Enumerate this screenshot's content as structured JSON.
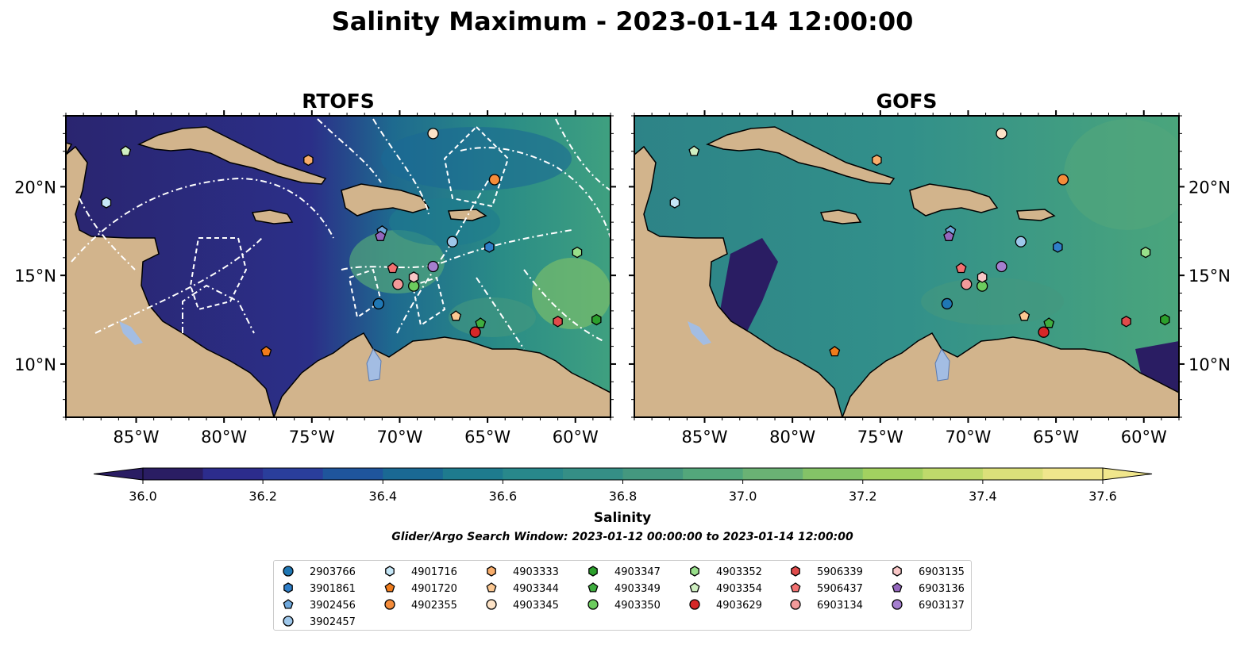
{
  "title": "Salinity Maximum - 2023-01-14 12:00:00",
  "colors": {
    "land": "#d2b48c",
    "lake": "#a3bde3",
    "river": "#8fb4e0",
    "front_lines": "#ffffff",
    "coast": "#000000"
  },
  "colorbar": {
    "label": "Salinity",
    "ticks": [
      "36.0",
      "36.2",
      "36.4",
      "36.6",
      "36.8",
      "37.0",
      "37.2",
      "37.4",
      "37.6"
    ],
    "vmin": 36.0,
    "vmax": 37.6,
    "colors": [
      "#2a1d63",
      "#2c2c8c",
      "#2a3e9b",
      "#1f559c",
      "#1a6994",
      "#1e7b8e",
      "#28888b",
      "#358f86",
      "#44987f",
      "#53a77b",
      "#6ab274",
      "#84c367",
      "#a2d160",
      "#bfda6b",
      "#dbe07a",
      "#f0e68c"
    ],
    "extend": "both"
  },
  "search_window": "Glider/Argo Search Window: 2023-01-12 00:00:00 to 2023-01-14 12:00:00",
  "chart_data": [
    {
      "type": "map",
      "title": "RTOFS",
      "xlim": [
        -89,
        -58
      ],
      "ylim": [
        7,
        24
      ],
      "xticks": [
        -85,
        -80,
        -75,
        -70,
        -65,
        -60
      ],
      "xtick_labels": [
        "85°W",
        "80°W",
        "75°W",
        "70°W",
        "65°W",
        "60°W"
      ],
      "yticks": [
        10,
        15,
        20
      ],
      "ytick_labels": [
        "10°N",
        "15°N",
        "20°N"
      ],
      "grid": false
    },
    {
      "type": "map",
      "title": "GOFS",
      "xlim": [
        -89,
        -58
      ],
      "ylim": [
        7,
        24
      ],
      "xticks": [
        -85,
        -80,
        -75,
        -70,
        -65,
        -60
      ],
      "xtick_labels": [
        "85°W",
        "80°W",
        "75°W",
        "70°W",
        "65°W",
        "60°W"
      ],
      "yticks": [
        10,
        15,
        20
      ],
      "ytick_labels": [
        "10°N",
        "15°N",
        "20°N"
      ],
      "grid": false
    }
  ],
  "floats": [
    {
      "id": "2903766",
      "marker": "circle",
      "color": "#1f77b4",
      "lon": -71.2,
      "lat": 13.4
    },
    {
      "id": "3901861",
      "marker": "hexagon",
      "color": "#2f7fc9",
      "lon": -64.9,
      "lat": 16.6
    },
    {
      "id": "3902456",
      "marker": "pentagon",
      "color": "#6fa8dc",
      "lon": -71.0,
      "lat": 17.5
    },
    {
      "id": "3902457",
      "marker": "circle",
      "color": "#9ec7ea",
      "lon": -67.0,
      "lat": 16.9
    },
    {
      "id": "4901716",
      "marker": "hexagon",
      "color": "#c6e7f7",
      "lon": -86.7,
      "lat": 19.1
    },
    {
      "id": "4901720",
      "marker": "pentagon",
      "color": "#f07c1c",
      "lon": -77.6,
      "lat": 10.7
    },
    {
      "id": "4902355",
      "marker": "circle",
      "color": "#f58c3a",
      "lon": -64.6,
      "lat": 20.4
    },
    {
      "id": "4903333",
      "marker": "hexagon",
      "color": "#f8ad6b",
      "lon": -75.2,
      "lat": 21.5
    },
    {
      "id": "4903344",
      "marker": "pentagon",
      "color": "#fcc892",
      "lon": -66.8,
      "lat": 12.7
    },
    {
      "id": "4903345",
      "marker": "circle",
      "color": "#fde3c7",
      "lon": -68.1,
      "lat": 23.0
    },
    {
      "id": "4903347",
      "marker": "hexagon",
      "color": "#2ca02c",
      "lon": -58.8,
      "lat": 12.5
    },
    {
      "id": "4903349",
      "marker": "pentagon",
      "color": "#3fae3f",
      "lon": -65.4,
      "lat": 12.3
    },
    {
      "id": "4903350",
      "marker": "circle",
      "color": "#6ccc5e",
      "lon": -69.2,
      "lat": 14.4
    },
    {
      "id": "4903352",
      "marker": "hexagon",
      "color": "#98df8a",
      "lon": -59.9,
      "lat": 16.3
    },
    {
      "id": "4903354",
      "marker": "pentagon",
      "color": "#cfefc1",
      "lon": -85.6,
      "lat": 22.0
    },
    {
      "id": "4903629",
      "marker": "circle",
      "color": "#d62728",
      "lon": -65.7,
      "lat": 11.8
    },
    {
      "id": "5906339",
      "marker": "hexagon",
      "color": "#e04b4b",
      "lon": -61.0,
      "lat": 12.4
    },
    {
      "id": "5906437",
      "marker": "pentagon",
      "color": "#f27171",
      "lon": -70.4,
      "lat": 15.4
    },
    {
      "id": "6903134",
      "marker": "circle",
      "color": "#f29a9a",
      "lon": -70.1,
      "lat": 14.5
    },
    {
      "id": "6903135",
      "marker": "hexagon",
      "color": "#f9c7c7",
      "lon": -69.2,
      "lat": 14.9
    },
    {
      "id": "6903136",
      "marker": "pentagon",
      "color": "#9467bd",
      "lon": -71.1,
      "lat": 17.2
    },
    {
      "id": "6903137",
      "marker": "circle",
      "color": "#a57fcf",
      "lon": -68.1,
      "lat": 15.5
    }
  ]
}
